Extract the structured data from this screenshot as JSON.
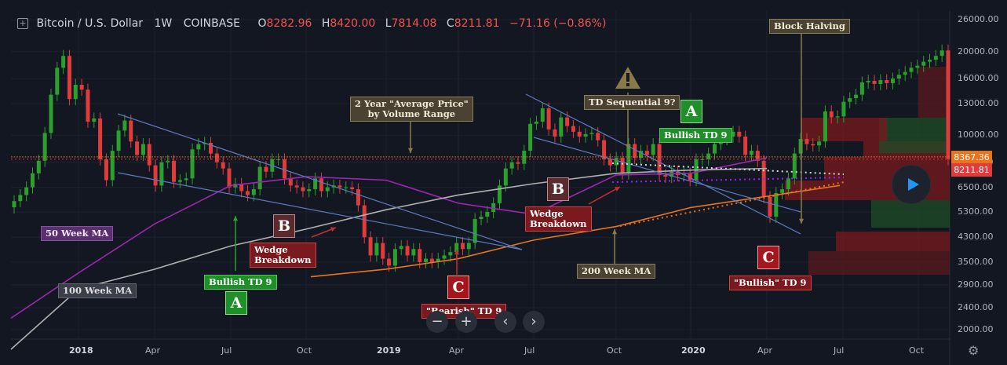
{
  "header": {
    "plus_icon": "+",
    "symbol": "Bitcoin / U.S. Dollar",
    "interval": "1W",
    "exchange": "COINBASE",
    "o_label": "O",
    "o": "8282.96",
    "h_label": "H",
    "h": "8420.00",
    "l_label": "L",
    "l": "7814.08",
    "c_label": "C",
    "c": "8211.81",
    "change": "−71.16 (−0.86%)"
  },
  "colors": {
    "background": "#131722",
    "up": "#2ca02c",
    "down": "#e03c3c",
    "ma50": "#9c27b0",
    "ma100": "#b0b0b0",
    "ma200": "#e8741e",
    "trendline": "#5b7bbd",
    "price_line": "#e8741e"
  },
  "price_boxes": {
    "upper": "8367.36",
    "lower": "8211.81"
  },
  "nav": {
    "zoom_out": "−",
    "zoom_in": "+",
    "prev": "‹",
    "next": "›"
  },
  "annotations": {
    "block_halving": "Block Halving",
    "avg_price_line1": "2 Year \"Average Price\"",
    "avg_price_line2": "by Volume Range",
    "td_seq": "TD Sequential 9?",
    "bullish_td9_right": "Bullish TD 9",
    "bullish_td9_left": "Bullish TD 9",
    "bearish_td9": "\"Bearish\" TD 9",
    "bullish_td9_quoted": "\"Bullish\" TD 9",
    "ma50": "50 Week MA",
    "ma100": "100 Week MA",
    "ma200": "200 Week MA",
    "wedge1_line1": "Wedge",
    "wedge1_line2": "Breakdown",
    "wedge2_line1": "Wedge",
    "wedge2_line2": "Breakdown",
    "A": "A",
    "B": "B",
    "C": "C"
  },
  "chart_data": {
    "type": "candlestick",
    "title": "Bitcoin / U.S. Dollar, 1W, COINBASE",
    "y_scale": "log",
    "y_ticks": [
      "26000.00",
      "20000.00",
      "16000.00",
      "13000.00",
      "10000.00",
      "8000.00",
      "6500.00",
      "5300.00",
      "4300.00",
      "3500.00",
      "2900.00",
      "2400.00",
      "2000.00"
    ],
    "x_ticks": [
      "2018",
      "Apr",
      "Jul",
      "Oct",
      "2019",
      "Apr",
      "Jul",
      "Oct",
      "2020",
      "Apr",
      "Jul",
      "Oct"
    ],
    "x_range": [
      "2017-10-23",
      "2020-11-09"
    ],
    "y_range": [
      1850,
      28000
    ],
    "last_price": 8211.81,
    "projection_price": 8367.36,
    "candles_close": [
      5800,
      6100,
      6500,
      7300,
      8100,
      10200,
      14000,
      17500,
      19300,
      13500,
      15200,
      14600,
      11200,
      11500,
      8200,
      6900,
      8800,
      10400,
      11300,
      9500,
      8500,
      9300,
      7800,
      6600,
      8000,
      8100,
      6800,
      6900,
      7000,
      8900,
      9300,
      9400,
      8600,
      8000,
      7600,
      6500,
      6700,
      6300,
      6100,
      6400,
      7700,
      7400,
      8200,
      8200,
      7000,
      6600,
      6500,
      6300,
      6400,
      7000,
      6300,
      6500,
      6600,
      6500,
      6500,
      6400,
      5600,
      4300,
      3700,
      4100,
      3600,
      3400,
      3900,
      4000,
      3700,
      3900,
      3500,
      3600,
      3500,
      3600,
      3700,
      3800,
      4100,
      3900,
      4100,
      5000,
      5100,
      5300,
      5700,
      6600,
      7600,
      8000,
      7900,
      8800,
      11000,
      11200,
      12500,
      10500,
      9900,
      11600,
      10800,
      10300,
      9900,
      10100,
      10200,
      9600,
      8200,
      7800,
      8300,
      7300,
      9300,
      8300,
      8800,
      8500,
      9300,
      7200,
      7100,
      7400,
      7200,
      7300,
      6900,
      8200,
      8200,
      8600,
      9300,
      9700,
      9900,
      10300,
      9900,
      8500,
      8800,
      8100,
      6000,
      5100,
      6200,
      6400,
      7000,
      8600,
      9700,
      9300,
      9200,
      9500,
      12200,
      11600,
      11700,
      13200,
      13600,
      14000,
      15500,
      15700,
      15300,
      15800,
      15400,
      16000,
      16500,
      16900,
      17500,
      17800,
      18400,
      18700,
      19300,
      20200,
      8211.81
    ],
    "series": [
      {
        "name": "50 Week MA",
        "values_at_ticks": [
          2200,
          3200,
          4800,
          6600,
          7100,
          6900,
          5700,
          5200,
          7200,
          7300,
          8300
        ]
      },
      {
        "name": "100 Week MA",
        "values_at_ticks": [
          1700,
          2800,
          3300,
          4000,
          4600,
          5400,
          6100,
          6700,
          7300,
          7500,
          7600
        ]
      },
      {
        "name": "200 Week MA",
        "values_at_ticks": [
          3100,
          3300,
          3600,
          4200,
          4700,
          5500,
          6600
        ]
      }
    ],
    "volume_profile_note": "horizontal volume-by-price bars along right side",
    "annotations": [
      "Block Halving",
      "2 Year \"Average Price\" by Volume Range",
      "TD Sequential 9?",
      "Bullish TD 9",
      "\"Bearish\" TD 9",
      "\"Bullish\" TD 9",
      "50 Week MA",
      "100 Week MA",
      "200 Week MA",
      "Wedge Breakdown",
      "A",
      "B",
      "C"
    ]
  }
}
